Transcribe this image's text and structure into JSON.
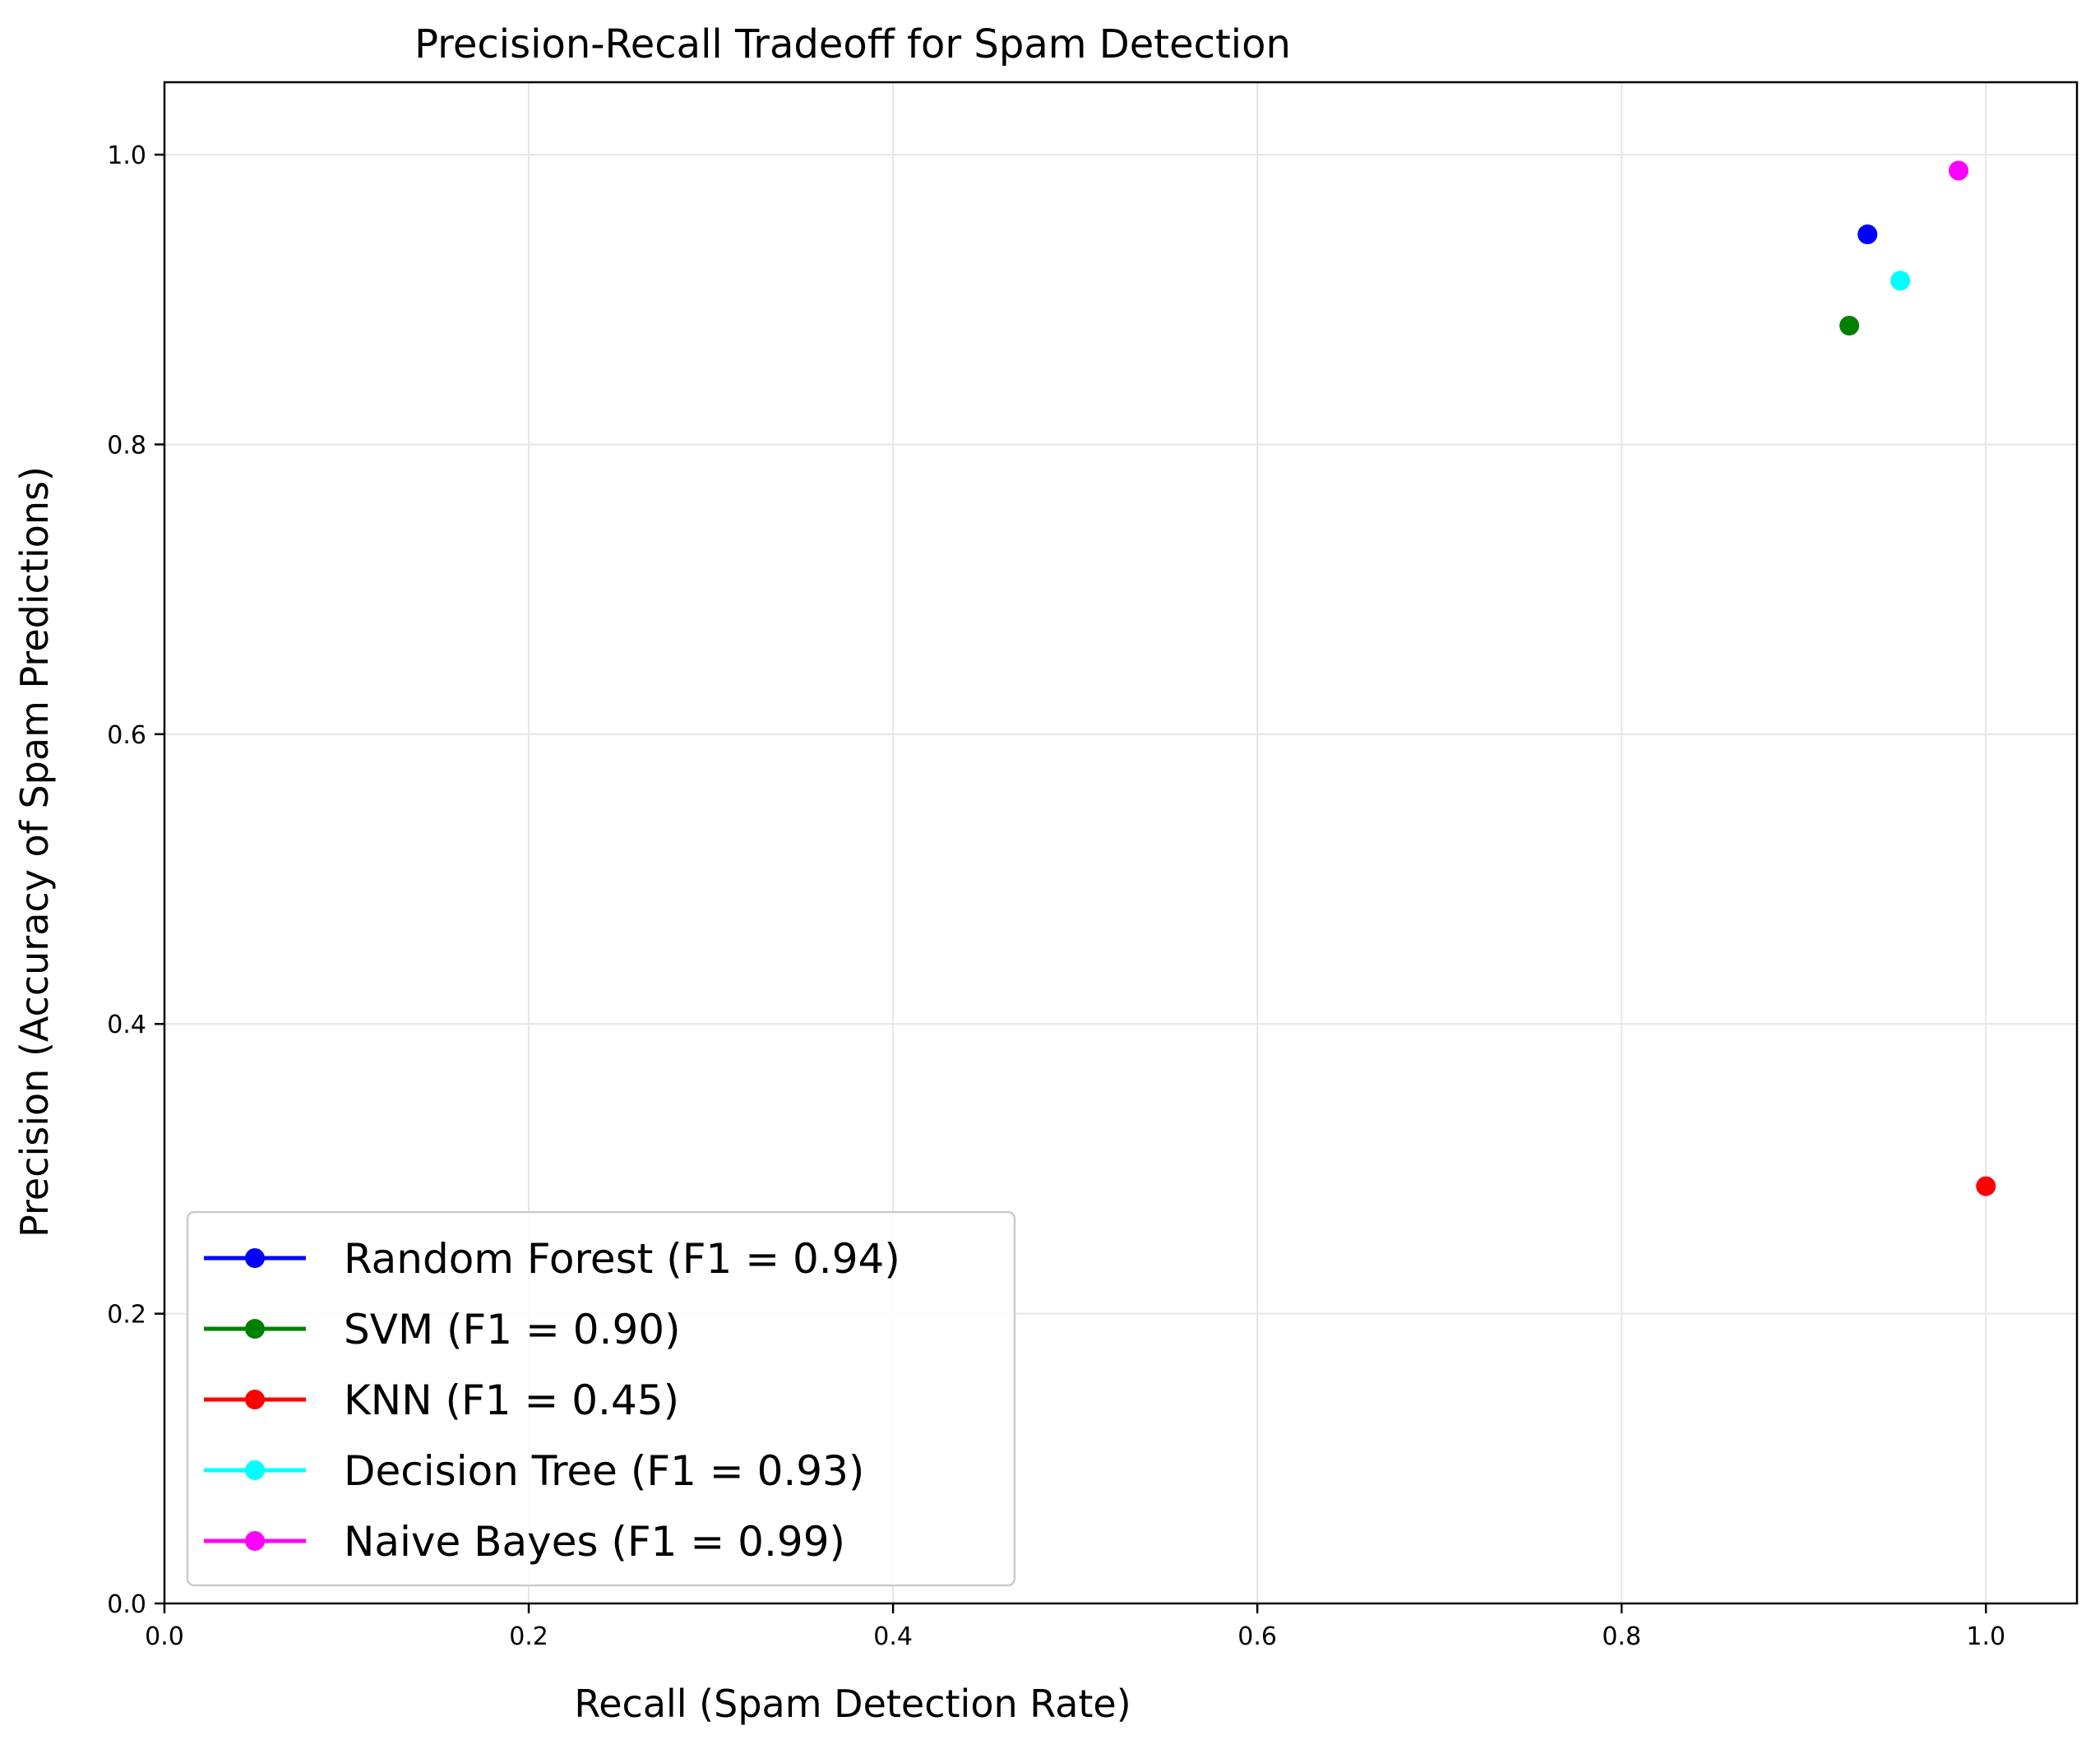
{
  "chart_data": {
    "type": "scatter",
    "title": "Precision-Recall Tradeoff for Spam Detection",
    "xlabel": "Recall (Spam Detection Rate)",
    "ylabel": "Precision (Accuracy of Spam Predictions)",
    "xlim": [
      0.0,
      1.05
    ],
    "ylim": [
      0.0,
      1.05
    ],
    "xticks": [
      0.0,
      0.2,
      0.4,
      0.6,
      0.8,
      1.0
    ],
    "yticks": [
      0.0,
      0.2,
      0.4,
      0.6,
      0.8,
      1.0
    ],
    "xtick_labels": [
      "0.0",
      "0.2",
      "0.4",
      "0.6",
      "0.8",
      "1.0"
    ],
    "ytick_labels": [
      "0.0",
      "0.2",
      "0.4",
      "0.6",
      "0.8",
      "1.0"
    ],
    "grid": true,
    "legend_position": "lower-left",
    "series": [
      {
        "name": "Random Forest",
        "label": "Random Forest (F1 = 0.94)",
        "color": "#0000ff",
        "x": 0.935,
        "y": 0.945
      },
      {
        "name": "SVM",
        "label": "SVM (F1 = 0.90)",
        "color": "#008000",
        "x": 0.925,
        "y": 0.882
      },
      {
        "name": "KNN",
        "label": "KNN (F1 = 0.45)",
        "color": "#ff0000",
        "x": 1.0,
        "y": 0.288
      },
      {
        "name": "Decision Tree",
        "label": "Decision Tree (F1 = 0.93)",
        "color": "#00ffff",
        "x": 0.953,
        "y": 0.913
      },
      {
        "name": "Naive Bayes",
        "label": "Naive Bayes (F1 = 0.99)",
        "color": "#ff00ff",
        "x": 0.985,
        "y": 0.989
      }
    ]
  }
}
